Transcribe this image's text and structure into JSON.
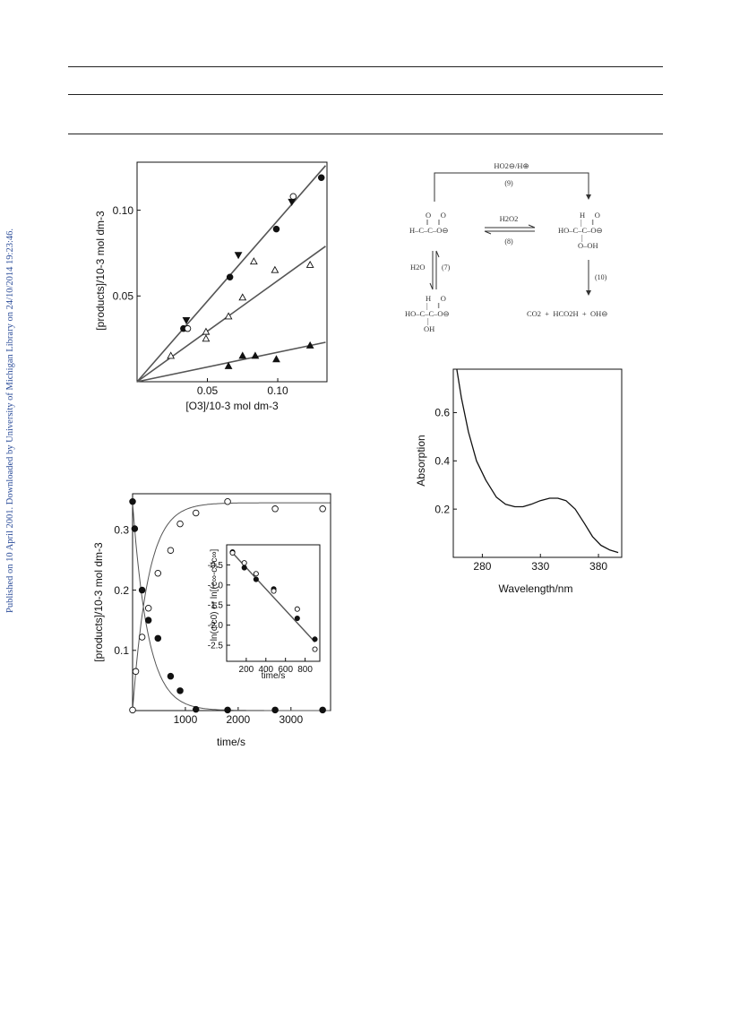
{
  "side_note": "Published on 10 April 2001. Downloaded by University of Michigan Library on 24/10/2014 19:23:46.",
  "colors": {
    "line": "#555555",
    "frame": "#111111",
    "note": "#2d4e9a"
  },
  "chart_data": [
    {
      "type": "scatter",
      "title": "",
      "xlabel": "[O3]/10-3 mol dm-3",
      "ylabel": "[products]/10-3 mol dm-3",
      "xlim": [
        0,
        0.135
      ],
      "ylim": [
        0,
        0.128
      ],
      "xticks": [
        0.05,
        0.1
      ],
      "xtick_labels": [
        "0.05",
        "0.10"
      ],
      "yticks": [
        0.05,
        0.1
      ],
      "ytick_labels": [
        "0.05",
        "0.10"
      ],
      "grid": false,
      "series": [
        {
          "marker": "filled-circle",
          "points": [
            [
              0.033,
              0.031
            ],
            [
              0.066,
              0.061
            ],
            [
              0.099,
              0.089
            ],
            [
              0.131,
              0.119
            ]
          ]
        },
        {
          "marker": "open-circle",
          "points": [
            [
              0.036,
              0.031
            ],
            [
              0.111,
              0.108
            ]
          ]
        },
        {
          "marker": "filled-triangle-down",
          "points": [
            [
              0.035,
              0.036
            ],
            [
              0.072,
              0.074
            ],
            [
              0.11,
              0.105
            ]
          ]
        },
        {
          "marker": "open-triangle",
          "points": [
            [
              0.024,
              0.015
            ],
            [
              0.049,
              0.029
            ],
            [
              0.049,
              0.025
            ],
            [
              0.065,
              0.038
            ],
            [
              0.075,
              0.049
            ],
            [
              0.083,
              0.07
            ],
            [
              0.098,
              0.065
            ],
            [
              0.123,
              0.068
            ]
          ]
        },
        {
          "marker": "filled-triangle",
          "points": [
            [
              0.065,
              0.009
            ],
            [
              0.075,
              0.015
            ],
            [
              0.084,
              0.015
            ],
            [
              0.099,
              0.013
            ],
            [
              0.123,
              0.021
            ]
          ]
        }
      ],
      "fit_lines": [
        {
          "x": [
            0,
            0.134
          ],
          "y": [
            0,
            0.126
          ]
        },
        {
          "x": [
            0,
            0.134
          ],
          "y": [
            0,
            0.079
          ]
        },
        {
          "x": [
            0,
            0.134
          ],
          "y": [
            0,
            0.023
          ]
        }
      ]
    },
    {
      "type": "line",
      "title": "",
      "xlabel": "time/s",
      "ylabel": "[products]/10-3 mol dm-3",
      "xlim": [
        0,
        3750
      ],
      "ylim": [
        0,
        0.36
      ],
      "xticks": [
        1000,
        2000,
        3000
      ],
      "xtick_labels": [
        "1000",
        "2000",
        "3000"
      ],
      "yticks": [
        0.1,
        0.2,
        0.3
      ],
      "ytick_labels": [
        "0.1",
        "0.2",
        "0.3"
      ],
      "grid": false,
      "series": [
        {
          "marker": "filled-circle",
          "points": [
            [
              0,
              0.347
            ],
            [
              40,
              0.302
            ],
            [
              180,
              0.2
            ],
            [
              300,
              0.15
            ],
            [
              480,
              0.12
            ],
            [
              720,
              0.057
            ],
            [
              900,
              0.033
            ],
            [
              1200,
              0.002
            ],
            [
              1800,
              0.001
            ],
            [
              2700,
              0.001
            ],
            [
              3600,
              0.001
            ]
          ]
        },
        {
          "marker": "open-circle",
          "points": [
            [
              0,
              0.001
            ],
            [
              60,
              0.065
            ],
            [
              180,
              0.122
            ],
            [
              300,
              0.17
            ],
            [
              480,
              0.228
            ],
            [
              720,
              0.266
            ],
            [
              900,
              0.31
            ],
            [
              1200,
              0.328
            ],
            [
              1800,
              0.347
            ],
            [
              2700,
              0.335
            ],
            [
              3600,
              0.335
            ]
          ]
        }
      ],
      "fit_curves": [
        {
          "form": "exp-decay",
          "a": 0.345,
          "k": 0.0034
        },
        {
          "form": "exp-rise",
          "a": 0.345,
          "k": 0.0034
        }
      ],
      "inset": {
        "type": "scatter",
        "xlabel": "time/s",
        "ylabel": "ln(c/c0) or ln[(c∞-c)/c∞]",
        "xlim": [
          0,
          950
        ],
        "ylim": [
          -2.9,
          0
        ],
        "xticks": [
          200,
          400,
          600,
          800
        ],
        "xtick_labels": [
          "200",
          "400",
          "600",
          "800"
        ],
        "yticks": [
          -0.5,
          -1.0,
          -1.5,
          -2.0,
          -2.5
        ],
        "ytick_labels": [
          "-0.5",
          "-1.0",
          "-1.5",
          "-2.0",
          "-2.5"
        ],
        "series": [
          {
            "marker": "filled-circle",
            "points": [
              [
                60,
                -0.18
              ],
              [
                180,
                -0.57
              ],
              [
                300,
                -0.86
              ],
              [
                480,
                -1.1
              ],
              [
                720,
                -1.83
              ],
              [
                900,
                -2.35
              ]
            ]
          },
          {
            "marker": "open-circle",
            "points": [
              [
                60,
                -0.2
              ],
              [
                180,
                -0.45
              ],
              [
                300,
                -0.72
              ],
              [
                480,
                -1.15
              ],
              [
                720,
                -1.6
              ],
              [
                900,
                -2.6
              ]
            ]
          }
        ],
        "fit_line": {
          "x": [
            60,
            900
          ],
          "y": [
            -0.2,
            -2.42
          ]
        }
      }
    },
    {
      "type": "line",
      "title": "",
      "xlabel": "Wavelength/nm",
      "ylabel": "Absorption",
      "xlim": [
        255,
        400
      ],
      "ylim": [
        0,
        0.78
      ],
      "xticks": [
        280,
        330,
        380
      ],
      "xtick_labels": [
        "280",
        "330",
        "380"
      ],
      "yticks": [
        0.2,
        0.4,
        0.6
      ],
      "ytick_labels": [
        "0.2",
        "0.4",
        "0.6"
      ],
      "grid": false,
      "series": [
        {
          "points": [
            [
              258,
              0.78
            ],
            [
              262,
              0.66
            ],
            [
              268,
              0.52
            ],
            [
              275,
              0.4
            ],
            [
              283,
              0.32
            ],
            [
              292,
              0.25
            ],
            [
              300,
              0.22
            ],
            [
              308,
              0.21
            ],
            [
              315,
              0.21
            ],
            [
              322,
              0.22
            ],
            [
              330,
              0.235
            ],
            [
              338,
              0.245
            ],
            [
              345,
              0.245
            ],
            [
              352,
              0.235
            ],
            [
              360,
              0.2
            ],
            [
              368,
              0.14
            ],
            [
              375,
              0.085
            ],
            [
              382,
              0.05
            ],
            [
              390,
              0.03
            ],
            [
              397,
              0.02
            ]
          ]
        }
      ]
    }
  ],
  "scheme": {
    "top_reagent": "HO2⊖/H⊕",
    "step9": "(9)",
    "step8_reagent": "H2O2",
    "step8": "(8)",
    "step7_reagent": "H2O",
    "step7": "(7)",
    "step10": "(10)",
    "glyoxylate": {
      "top": "O     O",
      "bonds": "‖     ‖",
      "main": "H–C–C–O⊖"
    },
    "adduct": {
      "top": "H     O",
      "bonds": "|     ‖",
      "main": "HO–C–C–O⊖",
      "b2": "|",
      "bottom": "O–OH"
    },
    "hydrate": {
      "top": "H     O",
      "bonds": "|     ‖",
      "main": "HO–C–C–O⊖",
      "b2": "|",
      "bottom": "OH"
    },
    "products": "CO2  +  HCO2H  +  OH⊖"
  }
}
